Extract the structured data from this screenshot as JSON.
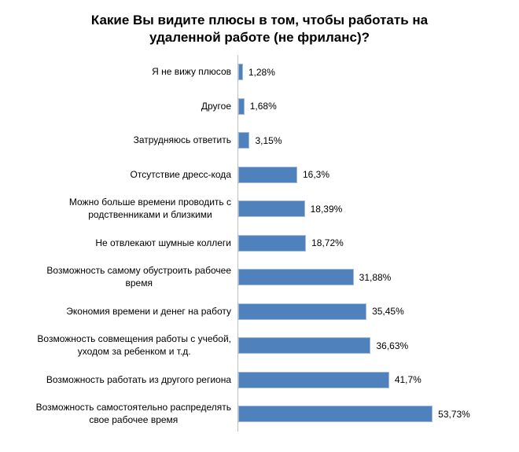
{
  "chart_data": {
    "type": "bar",
    "orientation": "horizontal",
    "title": "Какие Вы видите плюсы в том, чтобы работать на\nудаленной работе (не фриланс)?",
    "xlabel": "",
    "ylabel": "",
    "xlim": [
      0,
      58
    ],
    "grid": false,
    "legend": false,
    "bar_color": "#4F81BD",
    "bar_border_color": "#9DB9DC",
    "axis_line_color": "#BFBFBF",
    "text_color": "#000000",
    "categories": [
      "Я не вижу плюсов",
      "Другое",
      "Затрудняюсь ответить",
      "Отсутствие дресс-кода",
      "Можно больше времени проводить с\nродственниками и близкими",
      "Не отвлекают шумные коллеги",
      "Возможность самому обустроить рабочее\nвремя",
      "Экономия времени и денег на работу",
      "Возможность совмещения работы с учебой,\nуходом за ребенком и т.д.",
      "Возможность работать из другого региона",
      "Возможность самостоятельно распределять\nсвое рабочее время"
    ],
    "values": [
      1.28,
      1.68,
      3.15,
      16.3,
      18.39,
      18.72,
      31.88,
      35.45,
      36.63,
      41.7,
      53.73
    ],
    "value_labels": [
      "1,28%",
      "1,68%",
      "3,15%",
      "16,3%",
      "18,39%",
      "18,72%",
      "31,88%",
      "35,45%",
      "36,63%",
      "41,7%",
      "53,73%"
    ]
  }
}
